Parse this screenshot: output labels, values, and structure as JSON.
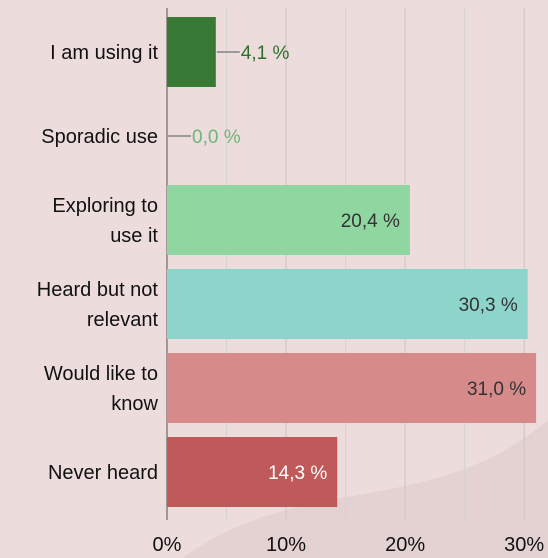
{
  "chart_data": {
    "type": "bar",
    "orientation": "horizontal",
    "categories": [
      "I am using it",
      "Sporadic use",
      "Exploring to use it",
      "Heard but not relevant",
      "Would like to know",
      "Never heard"
    ],
    "category_lines": [
      [
        "I am using it"
      ],
      [
        "Sporadic use"
      ],
      [
        "Exploring to",
        "use it"
      ],
      [
        "Heard but not",
        "relevant"
      ],
      [
        "Would like to",
        "know"
      ],
      [
        "Never heard"
      ]
    ],
    "values": [
      4.1,
      0.0,
      20.4,
      30.3,
      31.0,
      14.3
    ],
    "value_labels": [
      "4,1 %",
      "0,0 %",
      "20,4 %",
      "30,3 %",
      "31,0 %",
      "14,3 %"
    ],
    "bar_colors": [
      "#387a35",
      "#7fbf7f",
      "#8fd6a0",
      "#8dd5cb",
      "#d68a8a",
      "#c05a5a"
    ],
    "label_colors": [
      "#2f6e2c",
      "#6fb57a",
      "#333333",
      "#333333",
      "#333333",
      "#ffffff"
    ],
    "outside_label": [
      true,
      true,
      false,
      false,
      false,
      false
    ],
    "xlim": [
      0,
      32
    ],
    "xticks": [
      0,
      10,
      20,
      30
    ],
    "xtick_labels": [
      "0%",
      "10%",
      "20%",
      "30%"
    ],
    "grid": true,
    "title": "",
    "xlabel": "",
    "ylabel": ""
  }
}
